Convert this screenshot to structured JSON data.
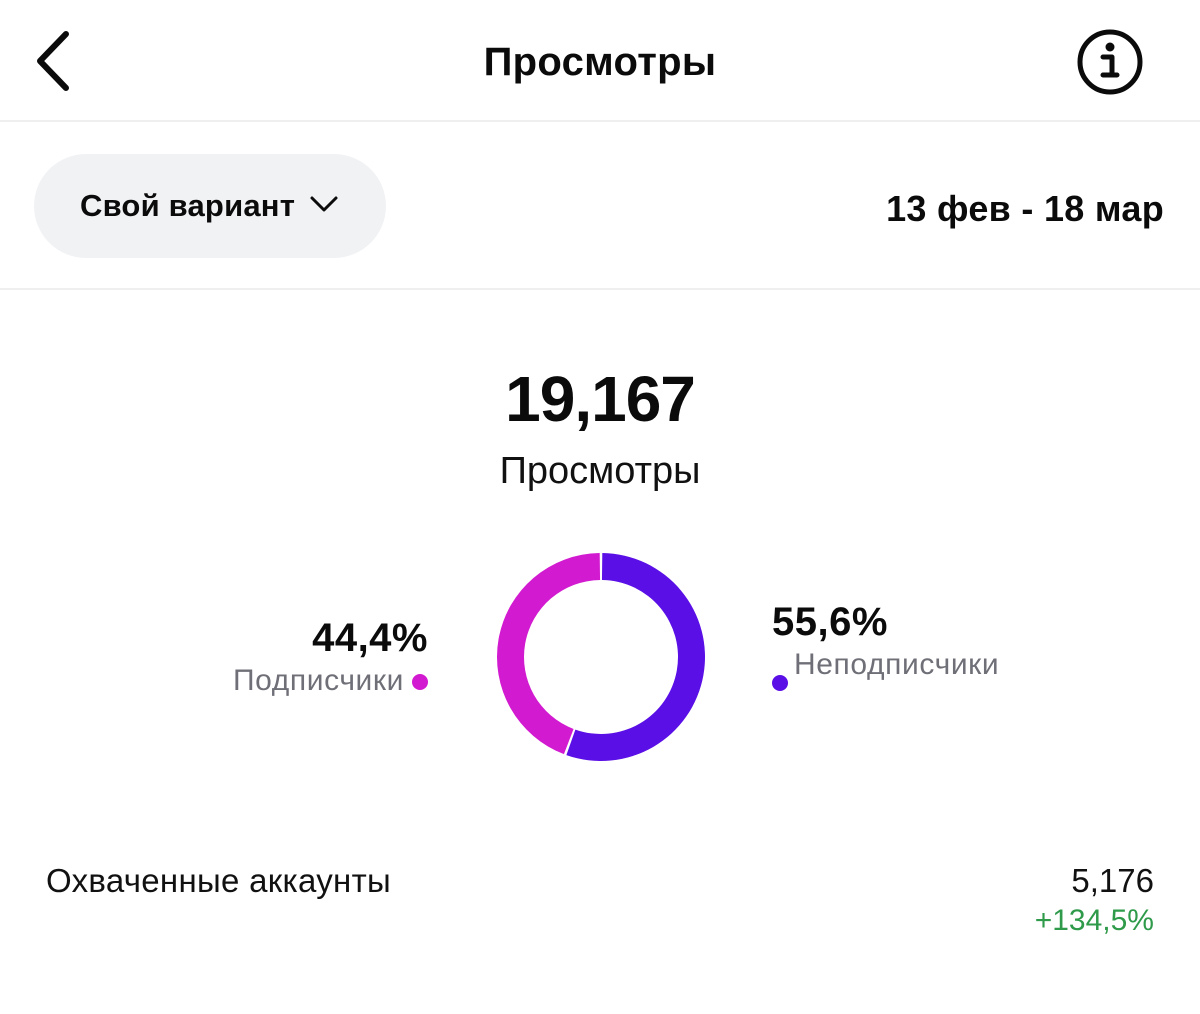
{
  "header": {
    "title": "Просмотры",
    "back_icon": "chevron-left-icon",
    "info_icon": "info-icon"
  },
  "filter": {
    "label": "Свой вариант",
    "icon": "chevron-down-icon",
    "date_range": "13 фев - 18 мар"
  },
  "summary": {
    "total": "19,167",
    "label": "Просмотры"
  },
  "chart_data": {
    "type": "pie",
    "categories": [
      "Подписчики",
      "Неподписчики"
    ],
    "values": [
      44.4,
      55.6
    ],
    "labels": [
      "44,4%",
      "55,6%"
    ],
    "colors": [
      "#d21ad0",
      "#5a0fe6"
    ]
  },
  "legend": {
    "left": {
      "pct": "44,4%",
      "label": "Подписчики"
    },
    "right": {
      "pct": "55,6%",
      "label": "Неподписчики"
    }
  },
  "metrics": [
    {
      "label": "Охваченные аккаунты",
      "value": "5,176",
      "delta": "+134,5%",
      "delta_color": "#2e9a4a"
    }
  ]
}
